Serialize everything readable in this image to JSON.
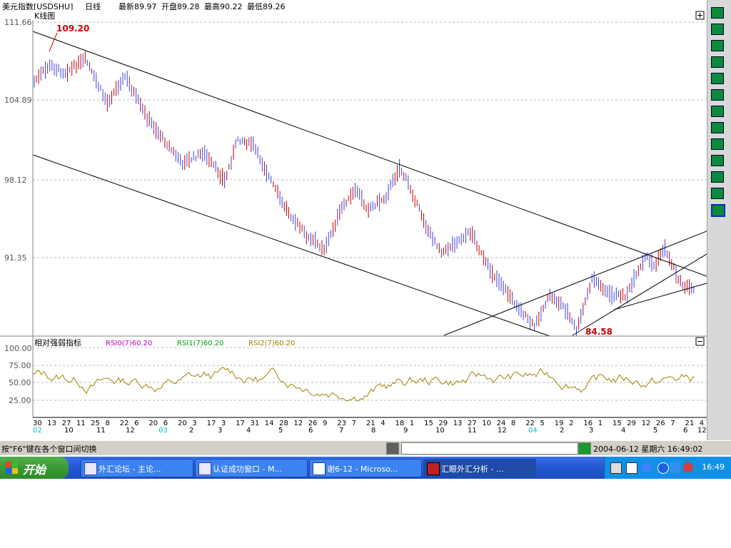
{
  "header": {
    "instrument": "美元指数[USDSHU]",
    "period": "日线",
    "latest": "最新89.97",
    "open": "开盘89.28",
    "high": "最高90.22",
    "low": "最低89.26"
  },
  "main_panel": {
    "title": "K线图",
    "price_levels": [
      "111.66",
      "104.89",
      "98.12",
      "91.35"
    ],
    "high_label": "109.20",
    "low_label": "84.58"
  },
  "indicator_panel": {
    "title": "相对强弱指标",
    "legend": [
      {
        "label": "RSI0(7)60.20",
        "color": "#c000c0"
      },
      {
        "label": "RSI1(7)60.20",
        "color": "#00a000"
      },
      {
        "label": "RSI2(7)60.20",
        "color": "#a08000"
      }
    ],
    "levels": [
      "100.00",
      "75.00",
      "50.00",
      "25.00"
    ]
  },
  "x_axis": {
    "days": [
      "30",
      "13",
      "27",
      "11",
      "25",
      "8",
      "22",
      "6",
      "20",
      "6",
      "20",
      "3",
      "17",
      "3",
      "17",
      "31",
      "14",
      "28",
      "12",
      "26",
      "9",
      "23",
      "7",
      "21",
      "4",
      "18",
      "1",
      "15",
      "29",
      "13",
      "27",
      "10",
      "24",
      "8",
      "22",
      "5",
      "19",
      "2",
      "16",
      "1",
      "15",
      "29",
      "12",
      "26",
      "7",
      "21",
      "4"
    ],
    "months": [
      "02",
      "10",
      "11",
      "12",
      "03",
      "2",
      "3",
      "4",
      "5",
      "6",
      "7",
      "8",
      "9",
      "10",
      "11",
      "12",
      "04",
      "2",
      "3",
      "4",
      "5",
      "6",
      "12"
    ]
  },
  "status_bar": {
    "hint": "按\"F6\"键在各个窗口间切换",
    "datetime": "2004-06-12 星期六 16:49:02"
  },
  "taskbar": {
    "start_label": "开始",
    "items": [
      {
        "label": "外汇论坛 - 主论..."
      },
      {
        "label": "认证成功窗口 - M..."
      },
      {
        "label": "谢6-12 - Microso..."
      },
      {
        "label": "汇眼外汇分析 - ..."
      }
    ],
    "clock": "16:49"
  },
  "colors": {
    "candle_up": "#c00000",
    "candle_down": "#4040e0",
    "rsi_line": "#a08000",
    "grid": "#b0b0b0",
    "label_red": "#cc0000",
    "cyan_label": "#00c0c0"
  }
}
